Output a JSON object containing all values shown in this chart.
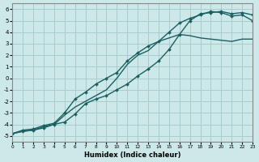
{
  "xlabel": "Humidex (Indice chaleur)",
  "xlim": [
    0,
    23
  ],
  "ylim": [
    -5.5,
    6.5
  ],
  "xticks": [
    0,
    1,
    2,
    3,
    4,
    5,
    6,
    7,
    8,
    9,
    10,
    11,
    12,
    13,
    14,
    15,
    16,
    17,
    18,
    19,
    20,
    21,
    22,
    23
  ],
  "yticks": [
    -5,
    -4,
    -3,
    -2,
    -1,
    0,
    1,
    2,
    3,
    4,
    5,
    6
  ],
  "bg_color": "#cce8e8",
  "grid_color": "#a8cccc",
  "line_color": "#1a6060",
  "curve1_x": [
    0,
    1,
    2,
    3,
    4,
    5,
    6,
    7,
    8,
    9,
    10,
    11,
    12,
    13,
    14,
    15,
    16,
    17,
    18,
    19,
    20,
    21,
    22,
    23
  ],
  "curve1_y": [
    -4.8,
    -4.6,
    -4.5,
    -4.2,
    -4.0,
    -3.2,
    -2.5,
    -2.0,
    -1.5,
    -1.0,
    0.0,
    1.2,
    2.0,
    2.4,
    3.2,
    3.5,
    3.8,
    3.7,
    3.5,
    3.4,
    3.3,
    3.2,
    3.4,
    3.4
  ],
  "curve2_x": [
    0,
    1,
    2,
    3,
    4,
    5,
    6,
    7,
    8,
    9,
    10,
    11,
    12,
    13,
    14,
    15,
    16,
    17,
    18,
    19,
    20,
    21,
    22,
    23
  ],
  "curve2_y": [
    -4.8,
    -4.5,
    -4.4,
    -4.1,
    -3.9,
    -3.0,
    -1.8,
    -1.2,
    -0.5,
    0.0,
    0.5,
    1.5,
    2.2,
    2.8,
    3.2,
    4.0,
    4.8,
    5.2,
    5.5,
    5.8,
    5.7,
    5.4,
    5.5,
    5.0
  ],
  "curve3_x": [
    0,
    1,
    2,
    3,
    4,
    5,
    6,
    7,
    8,
    9,
    10,
    11,
    12,
    13,
    14,
    15,
    16,
    17,
    18,
    19,
    20,
    21,
    22,
    23
  ],
  "curve3_y": [
    -4.8,
    -4.6,
    -4.5,
    -4.3,
    -4.0,
    -3.8,
    -3.1,
    -2.2,
    -1.8,
    -1.5,
    -1.0,
    -0.5,
    0.2,
    0.8,
    1.5,
    2.5,
    3.8,
    5.0,
    5.6,
    5.7,
    5.8,
    5.6,
    5.7,
    5.5
  ]
}
